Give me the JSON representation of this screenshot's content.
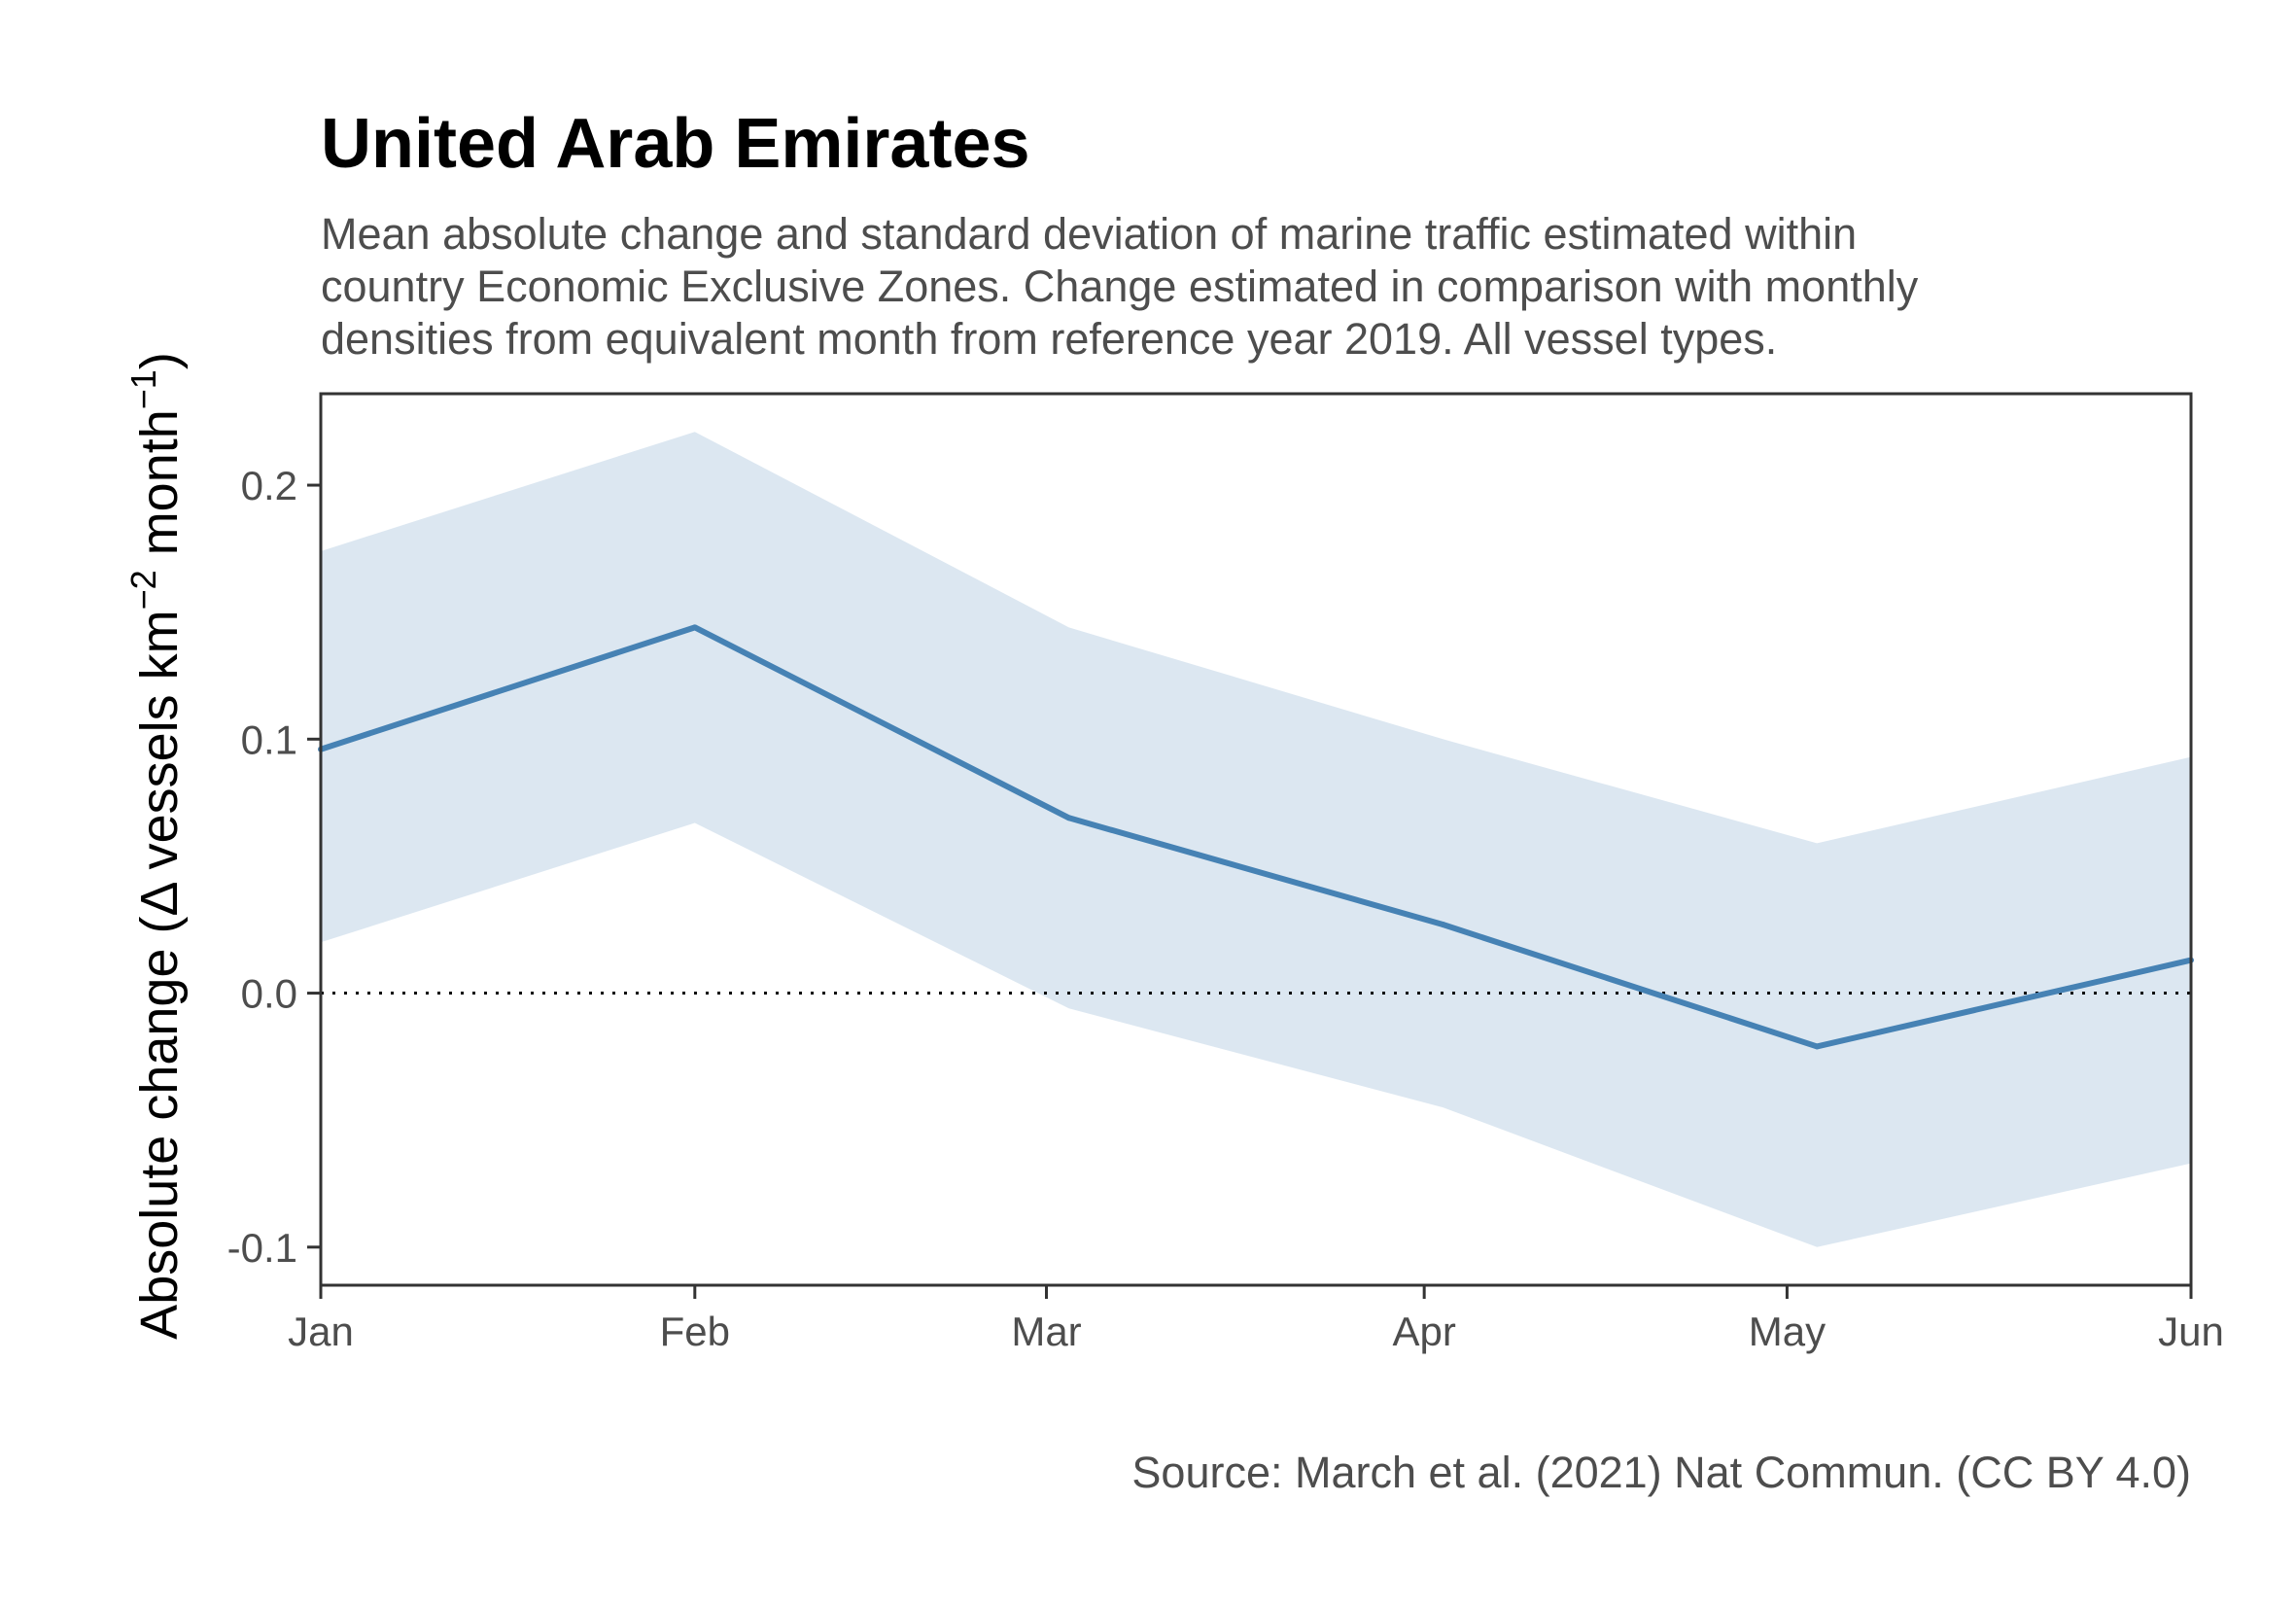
{
  "chart_data": {
    "type": "line",
    "title": "United Arab Emirates",
    "subtitle": [
      "Mean absolute change and standard deviation of marine traffic estimated within",
      "country Economic Exclusive Zones. Change estimated in comparison with monthly",
      "densities from equivalent month from reference year 2019. All vessel types."
    ],
    "ylabel": {
      "prefix": "Absolute change (",
      "delta": "Δ",
      "vessels_km": " vessels km",
      "exp1": "−2",
      "month": " month",
      "exp2": "−1",
      "suffix": ")"
    },
    "xlabel": "",
    "caption": "Source: March et al. (2021) Nat Commun. (CC BY 4.0)",
    "categories": [
      "Jan",
      "Feb",
      "Mar",
      "Apr",
      "May",
      "Jun"
    ],
    "x": [
      1,
      2,
      3,
      4,
      5,
      6
    ],
    "series": [
      {
        "values": [
          0.096,
          0.144,
          0.069,
          0.027,
          -0.021,
          0.013
        ],
        "lower": [
          0.02,
          0.067,
          -0.006,
          -0.045,
          -0.1,
          -0.067
        ],
        "upper": [
          0.174,
          0.221,
          0.144,
          0.1,
          0.059,
          0.093
        ]
      }
    ],
    "x_breaks": [
      1,
      2,
      2.94,
      3.95,
      4.92,
      6
    ],
    "yticks": [
      -0.1,
      0.0,
      0.1,
      0.2
    ],
    "ytick_labels": [
      "-0.1",
      "0.0",
      "0.1",
      "0.2"
    ],
    "ylim": [
      -0.115,
      0.236
    ],
    "xlim": [
      1,
      6
    ],
    "reference_line": 0,
    "grid": false,
    "colors": {
      "line": "#4682b4",
      "ribbon": "#dce7f1",
      "panel_border": "#333333",
      "reference": "#000000"
    }
  }
}
